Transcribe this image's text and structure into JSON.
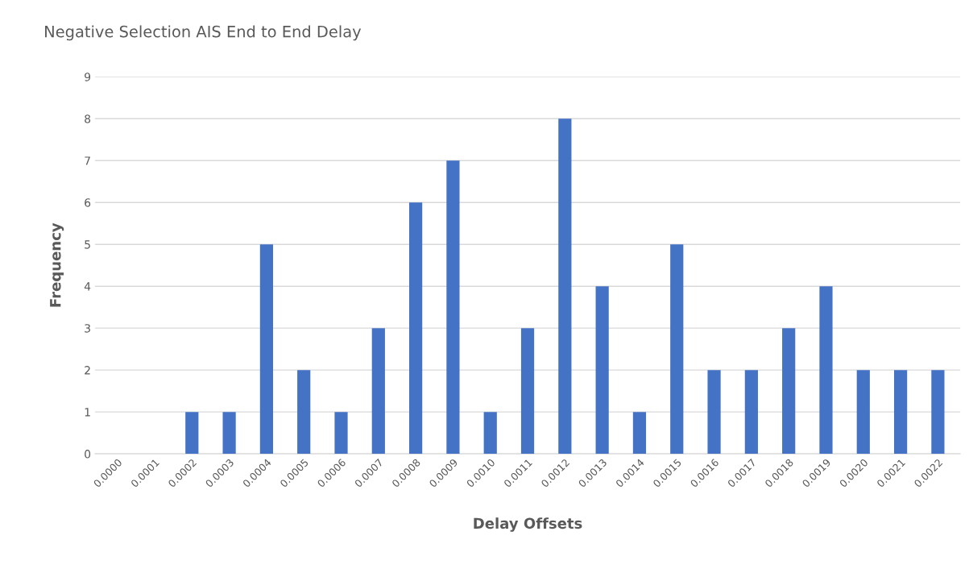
{
  "chart_data": {
    "type": "bar",
    "title": "Negative Selection AIS End to End Delay",
    "xlabel": "Delay Offsets",
    "ylabel": "Frequency",
    "categories": [
      "0.0000",
      "0.0001",
      "0.0002",
      "0.0003",
      "0.0004",
      "0.0005",
      "0.0006",
      "0.0007",
      "0.0008",
      "0.0009",
      "0.0010",
      "0.0011",
      "0.0012",
      "0.0013",
      "0.0014",
      "0.0015",
      "0.0016",
      "0.0017",
      "0.0018",
      "0.0019",
      "0.0020",
      "0.0021",
      "0.0022"
    ],
    "values": [
      0,
      0,
      1,
      1,
      5,
      2,
      1,
      3,
      6,
      7,
      1,
      3,
      8,
      4,
      1,
      5,
      2,
      2,
      3,
      4,
      2,
      2,
      2
    ],
    "color": "#4472c4",
    "ylim": [
      0,
      9
    ],
    "yticks": [
      0,
      1,
      2,
      3,
      4,
      5,
      6,
      7,
      8,
      9
    ],
    "grid": "y",
    "legend": false
  }
}
